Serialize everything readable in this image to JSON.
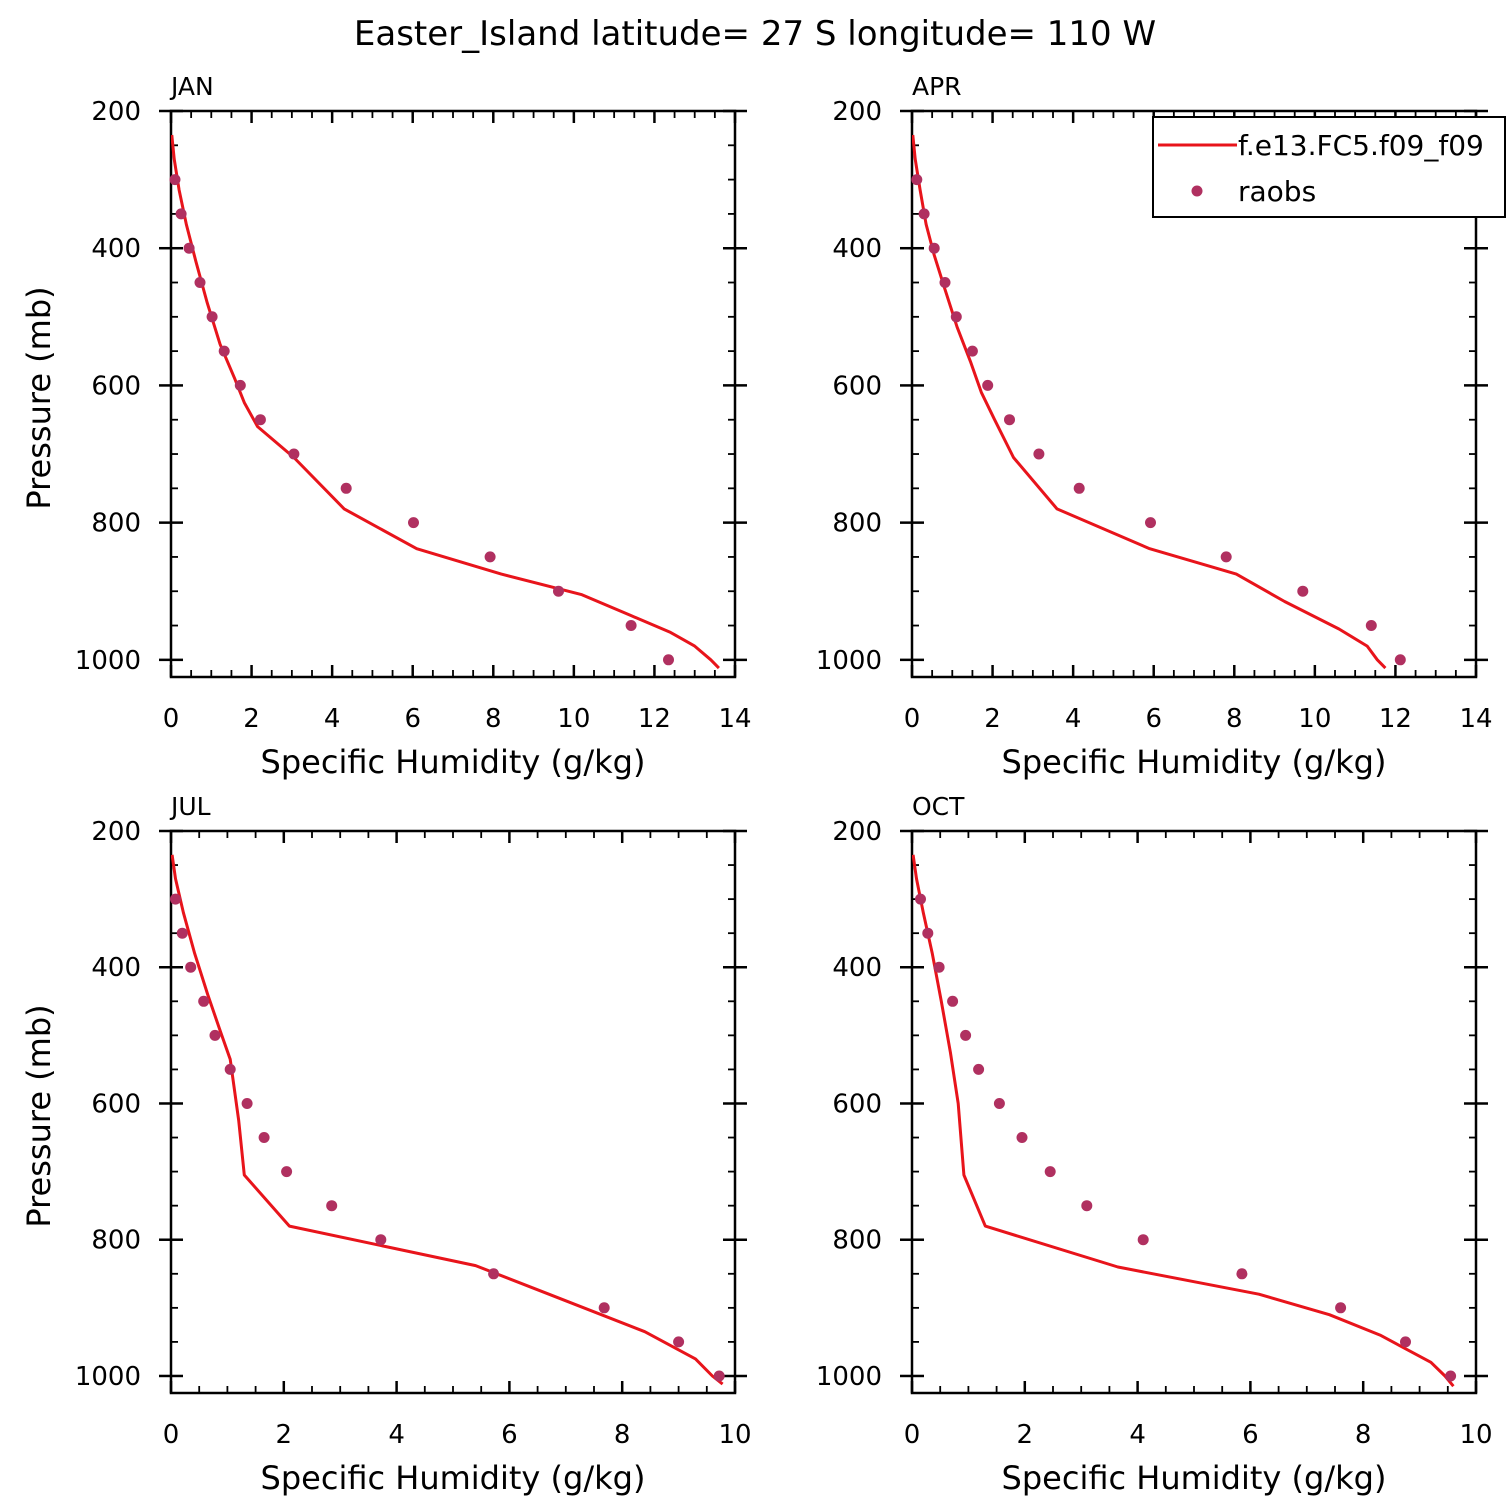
{
  "figure": {
    "title": "Easter_Island  latitude= 27 S longitude= 110 W",
    "xlabel": "Specific Humidity (g/kg)",
    "ylabel": "Pressure (mb)",
    "colors": {
      "model": "#e8141b",
      "obs": "#b03060",
      "axis": "#000000"
    }
  },
  "legend": {
    "model_label": "f.e13.FC5.f09_f09",
    "obs_label": "raobs",
    "placement": "top-right of APR panel"
  },
  "chart_data": [
    {
      "type": "line",
      "panel_label": "JAN",
      "xlabel": "Specific Humidity (g/kg)",
      "ylabel": "Pressure (mb)",
      "xlim": [
        0,
        14
      ],
      "ylim": [
        200,
        1025
      ],
      "y_reversed": true,
      "xticks": [
        0,
        2,
        4,
        6,
        8,
        10,
        12,
        14
      ],
      "yticks": [
        200,
        400,
        600,
        800,
        1000
      ],
      "series": [
        {
          "name": "f.e13.FC5.f09_f09",
          "kind": "line",
          "x": [
            0.02,
            0.08,
            0.2,
            0.38,
            0.62,
            0.9,
            1.22,
            1.58,
            1.82,
            2.15,
            3.05,
            4.3,
            6.1,
            8.2,
            10.2,
            11.4,
            12.4,
            13.0,
            13.4,
            13.6
          ],
          "y": [
            235,
            270,
            315,
            365,
            420,
            480,
            540,
            590,
            625,
            660,
            705,
            780,
            838,
            875,
            905,
            935,
            960,
            980,
            1000,
            1012
          ]
        },
        {
          "name": "raobs",
          "kind": "scatter",
          "x": [
            0.1,
            0.25,
            0.45,
            0.72,
            1.02,
            1.32,
            1.72,
            2.22,
            3.05,
            4.35,
            6.02,
            7.92,
            9.62,
            11.42,
            12.35
          ],
          "y": [
            300,
            350,
            400,
            450,
            500,
            550,
            600,
            650,
            700,
            750,
            800,
            850,
            900,
            950,
            1000
          ]
        }
      ]
    },
    {
      "type": "line",
      "panel_label": "APR",
      "xlabel": "Specific Humidity (g/kg)",
      "ylabel": "",
      "xlim": [
        0,
        14
      ],
      "ylim": [
        200,
        1025
      ],
      "y_reversed": true,
      "xticks": [
        0,
        2,
        4,
        6,
        8,
        10,
        12,
        14
      ],
      "yticks": [
        200,
        400,
        600,
        800,
        1000
      ],
      "series": [
        {
          "name": "f.e13.FC5.f09_f09",
          "kind": "line",
          "x": [
            0.02,
            0.08,
            0.2,
            0.35,
            0.55,
            0.82,
            1.12,
            1.45,
            1.72,
            2.05,
            2.52,
            3.6,
            5.9,
            8.05,
            9.25,
            10.6,
            11.3,
            11.55,
            11.75
          ],
          "y": [
            235,
            270,
            315,
            365,
            410,
            460,
            515,
            565,
            610,
            650,
            705,
            780,
            838,
            875,
            915,
            955,
            980,
            1000,
            1012
          ]
        },
        {
          "name": "raobs",
          "kind": "scatter",
          "x": [
            0.12,
            0.3,
            0.55,
            0.82,
            1.1,
            1.5,
            1.88,
            2.42,
            3.15,
            4.15,
            5.92,
            7.8,
            9.7,
            11.4,
            12.12
          ],
          "y": [
            300,
            350,
            400,
            450,
            500,
            550,
            600,
            650,
            700,
            750,
            800,
            850,
            900,
            950,
            1000
          ]
        }
      ]
    },
    {
      "type": "line",
      "panel_label": "JUL",
      "xlabel": "Specific Humidity (g/kg)",
      "ylabel": "Pressure (mb)",
      "xlim": [
        0,
        10
      ],
      "ylim": [
        200,
        1025
      ],
      "y_reversed": true,
      "xticks": [
        0,
        2,
        4,
        6,
        8,
        10
      ],
      "yticks": [
        200,
        400,
        600,
        800,
        1000
      ],
      "series": [
        {
          "name": "f.e13.FC5.f09_f09",
          "kind": "line",
          "x": [
            0.02,
            0.08,
            0.22,
            0.42,
            0.65,
            0.88,
            1.05,
            1.2,
            1.3,
            2.1,
            5.4,
            6.7,
            8.4,
            9.3,
            9.6,
            9.78
          ],
          "y": [
            235,
            270,
            320,
            380,
            440,
            495,
            535,
            625,
            705,
            780,
            838,
            880,
            935,
            975,
            1000,
            1012
          ]
        },
        {
          "name": "raobs",
          "kind": "scatter",
          "x": [
            0.08,
            0.2,
            0.35,
            0.58,
            0.78,
            1.05,
            1.35,
            1.65,
            2.05,
            2.85,
            3.72,
            5.72,
            7.68,
            9.0,
            9.72
          ],
          "y": [
            300,
            350,
            400,
            450,
            500,
            550,
            600,
            650,
            700,
            750,
            800,
            850,
            900,
            950,
            1000
          ]
        }
      ]
    },
    {
      "type": "line",
      "panel_label": "OCT",
      "xlabel": "Specific Humidity (g/kg)",
      "ylabel": "",
      "xlim": [
        0,
        10
      ],
      "ylim": [
        200,
        1025
      ],
      "y_reversed": true,
      "xticks": [
        0,
        2,
        4,
        6,
        8,
        10
      ],
      "yticks": [
        200,
        400,
        600,
        800,
        1000
      ],
      "series": [
        {
          "name": "f.e13.FC5.f09_f09",
          "kind": "line",
          "x": [
            0.02,
            0.08,
            0.2,
            0.36,
            0.52,
            0.68,
            0.82,
            0.92,
            1.3,
            3.65,
            6.15,
            7.4,
            8.3,
            9.2,
            9.45,
            9.6
          ],
          "y": [
            235,
            270,
            320,
            380,
            450,
            525,
            600,
            705,
            780,
            840,
            880,
            910,
            940,
            980,
            1000,
            1015
          ]
        },
        {
          "name": "raobs",
          "kind": "scatter",
          "x": [
            0.15,
            0.28,
            0.48,
            0.72,
            0.95,
            1.18,
            1.55,
            1.95,
            2.45,
            3.1,
            4.1,
            5.85,
            7.6,
            8.75,
            9.55
          ],
          "y": [
            300,
            350,
            400,
            450,
            500,
            550,
            600,
            650,
            700,
            750,
            800,
            850,
            900,
            950,
            1000
          ]
        }
      ]
    }
  ]
}
